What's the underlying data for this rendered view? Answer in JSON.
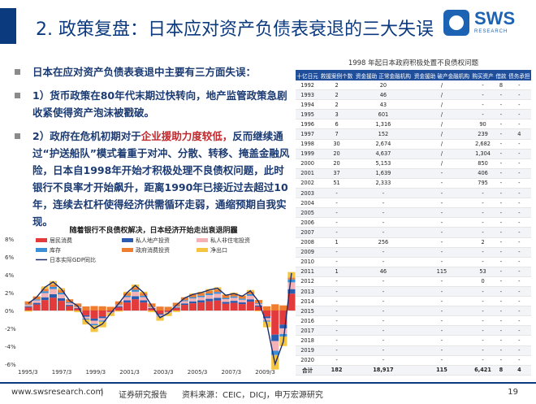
{
  "header": {
    "title": "2. 政策复盘：日本应对资产负债表衰退的三大失误"
  },
  "logo": {
    "name": "SWS",
    "sub": "RESEARCH"
  },
  "bullets": [
    {
      "plain": "日本在应对资产负债表衰退中主要有三方面失误：",
      "strong": ""
    },
    {
      "strong": "1）货币政策在80年代末期过快转向，地产监管政策急剧收紧使得资产泡沫被戳破。",
      "plain": ""
    },
    {
      "prefix": "2）政府在危机初期对于",
      "red": "企业援助力度较低，",
      "plain": "反而继续通过“护送船队”模式着重于对冲、分散、转移、掩盖金融风险，日本自1998年开始才积极处理不良债权问题，此时银行不良率才开始飙升，距离1990年已接近过去超过10年，连续去杠杆使得经济供需循环走弱，通缩预期自我实现。"
    }
  ],
  "chart_data": {
    "type": "bar",
    "title": "随着银行不良债权解决，日本经济开始走出衰退阴霾",
    "legend": [
      "居民消费",
      "私人地产投资",
      "私人非住宅投资",
      "库存",
      "政府消费投资",
      "净出口",
      "日本实际GDP同比"
    ],
    "colors": {
      "居民消费": "#e33b3b",
      "私人地产投资": "#2a5cb0",
      "私人非住宅投资": "#f4b2b7",
      "库存": "#3a8fd6",
      "政府消费投资": "#ef7d2f",
      "净出口": "#f5c542",
      "日本实际GDP同比": "#1b2d6b"
    },
    "x_ticks": [
      "1995/3",
      "1997/3",
      "1999/3",
      "2001/3",
      "2003/3",
      "2005/3",
      "2007/3",
      "2009/3"
    ],
    "y_ticks": [
      "8%",
      "6%",
      "4%",
      "2%",
      "0%",
      "-2%",
      "-4%",
      "-6%"
    ],
    "ylim": [
      -6,
      8
    ],
    "gdp_yoy": [
      0.8,
      1.5,
      2.6,
      3.2,
      2.4,
      1.1,
      0.5,
      -1.2,
      -2.0,
      -1.5,
      -0.3,
      0.8,
      2.0,
      2.8,
      2.0,
      0.5,
      -0.8,
      -0.3,
      0.6,
      1.4,
      1.8,
      2.0,
      2.3,
      2.5,
      1.7,
      1.9,
      1.6,
      2.2,
      1.0,
      -1.5,
      -6.0,
      -3.5,
      4.2
    ]
  },
  "table": {
    "title": "1998 年起日本政府积极处置不良债权问题",
    "headers": [
      "十亿日元",
      "救援案例个数",
      "资金援助（Monetary grants）正常金融机构",
      "资金援助 破产金融机构",
      "购买资产",
      "借款",
      "债务承担"
    ],
    "rows": [
      [
        "1992",
        "2",
        "20",
        "/",
        "-",
        "8",
        "-"
      ],
      [
        "1993",
        "2",
        "46",
        "/",
        "-",
        "-",
        "-"
      ],
      [
        "1994",
        "2",
        "43",
        "/",
        "-",
        "-",
        "-"
      ],
      [
        "1995",
        "3",
        "601",
        "/",
        "-",
        "-",
        "-"
      ],
      [
        "1996",
        "6",
        "1,316",
        "/",
        "90",
        "-",
        "-"
      ],
      [
        "1997",
        "7",
        "152",
        "/",
        "239",
        "-",
        "4"
      ],
      [
        "1998",
        "30",
        "2,674",
        "/",
        "2,682",
        "-",
        "-"
      ],
      [
        "1999",
        "20",
        "4,637",
        "/",
        "1,304",
        "-",
        "-"
      ],
      [
        "2000",
        "20",
        "5,153",
        "/",
        "850",
        "-",
        "-"
      ],
      [
        "2001",
        "37",
        "1,639",
        "-",
        "406",
        "-",
        "-"
      ],
      [
        "2002",
        "51",
        "2,333",
        "-",
        "795",
        "-",
        "-"
      ],
      [
        "2003",
        "-",
        "-",
        "-",
        "-",
        "-",
        "-"
      ],
      [
        "2004",
        "-",
        "-",
        "-",
        "-",
        "-",
        "-"
      ],
      [
        "2005",
        "-",
        "-",
        "-",
        "-",
        "-",
        "-"
      ],
      [
        "2006",
        "-",
        "-",
        "-",
        "-",
        "-",
        "-"
      ],
      [
        "2007",
        "-",
        "-",
        "-",
        "-",
        "-",
        "-"
      ],
      [
        "2008",
        "1",
        "256",
        "-",
        "2",
        "-",
        "-"
      ],
      [
        "2009",
        "-",
        "-",
        "-",
        "-",
        "-",
        "-"
      ],
      [
        "2010",
        "-",
        "-",
        "-",
        "-",
        "-",
        "-"
      ],
      [
        "2011",
        "1",
        "46",
        "115",
        "53",
        "-",
        "-"
      ],
      [
        "2012",
        "-",
        "-",
        "-",
        "0",
        "-",
        "-"
      ],
      [
        "2013",
        "-",
        "-",
        "-",
        "-",
        "-",
        "-"
      ],
      [
        "2014",
        "-",
        "-",
        "-",
        "-",
        "-",
        "-"
      ],
      [
        "2015",
        "-",
        "-",
        "-",
        "-",
        "-",
        "-"
      ],
      [
        "2016",
        "-",
        "-",
        "-",
        "-",
        "-",
        "-"
      ],
      [
        "2017",
        "-",
        "-",
        "-",
        "-",
        "-",
        "-"
      ],
      [
        "2018",
        "-",
        "-",
        "-",
        "-",
        "-",
        "-"
      ],
      [
        "2019",
        "-",
        "-",
        "-",
        "-",
        "-",
        "-"
      ],
      [
        "2020",
        "-",
        "-",
        "-",
        "-",
        "-",
        "-"
      ]
    ],
    "total": [
      "合计",
      "182",
      "18,917",
      "115",
      "6,421",
      "8",
      "4"
    ]
  },
  "footer": {
    "url": "www.swsresearch.com",
    "sep": "|",
    "type": "证券研究报告",
    "source": "资料来源：CEIC，DICJ，申万宏源研究",
    "page": "19"
  }
}
